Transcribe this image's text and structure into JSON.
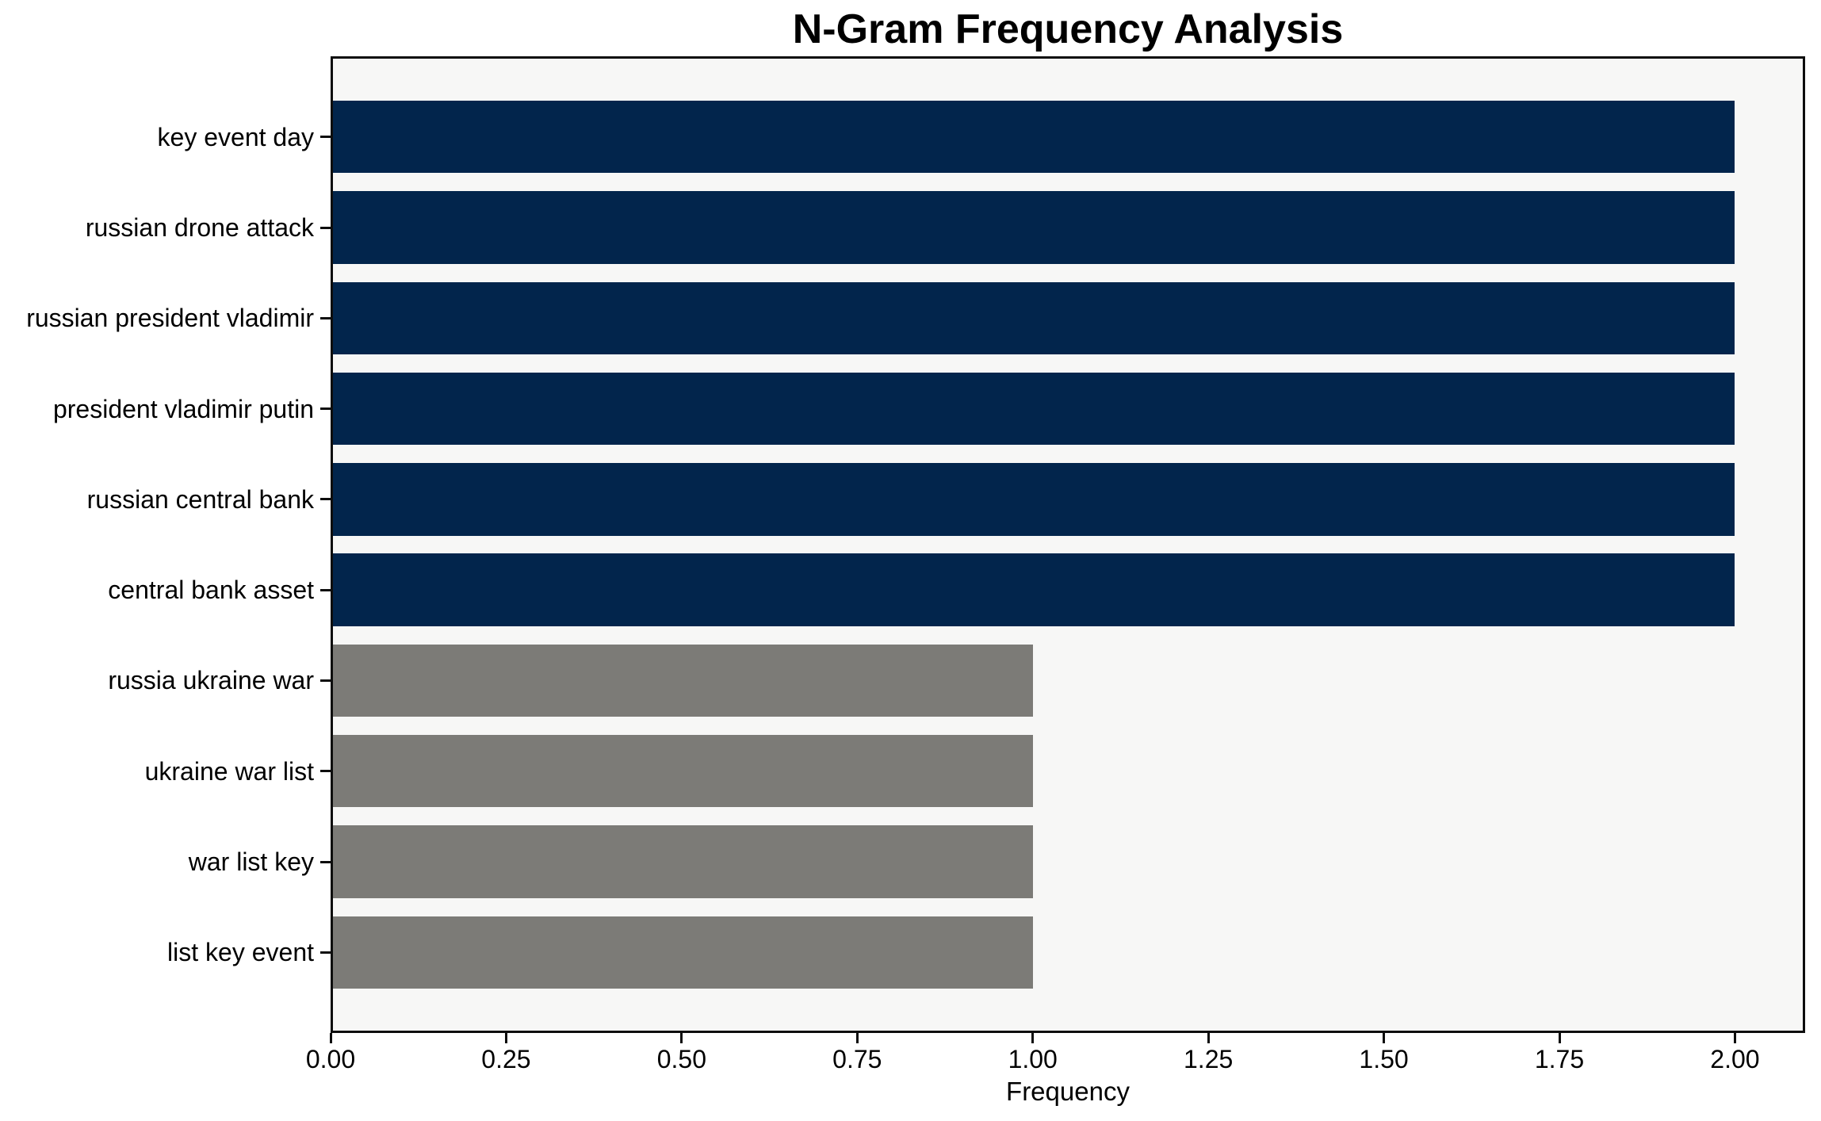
{
  "chart_data": {
    "type": "bar",
    "orientation": "horizontal",
    "title": "N-Gram Frequency Analysis",
    "xlabel": "Frequency",
    "ylabel": "",
    "categories": [
      "key event day",
      "russian drone attack",
      "russian president vladimir",
      "president vladimir putin",
      "russian central bank",
      "central bank asset",
      "russia ukraine war",
      "ukraine war list",
      "war list key",
      "list key event"
    ],
    "values": [
      2,
      2,
      2,
      2,
      2,
      2,
      1,
      1,
      1,
      1
    ],
    "bar_colors": [
      "#02254c",
      "#02254c",
      "#02254c",
      "#02254c",
      "#02254c",
      "#02254c",
      "#7c7b77",
      "#7c7b77",
      "#7c7b77",
      "#7c7b77"
    ],
    "xlim": [
      0,
      2.1
    ],
    "xticks": [
      0,
      0.25,
      0.5,
      0.75,
      1.0,
      1.25,
      1.5,
      1.75,
      2.0
    ],
    "xtick_labels": [
      "0.00",
      "0.25",
      "0.50",
      "0.75",
      "1.00",
      "1.25",
      "1.50",
      "1.75",
      "2.00"
    ],
    "grid": false,
    "legend_position": "none",
    "colors": {
      "highlight_bar": "#02254c",
      "regular_bar": "#7c7b77",
      "plot_background": "#f7f7f6",
      "figure_background": "#ffffff",
      "spine": "#0d0d0d",
      "text": "#000000"
    }
  }
}
